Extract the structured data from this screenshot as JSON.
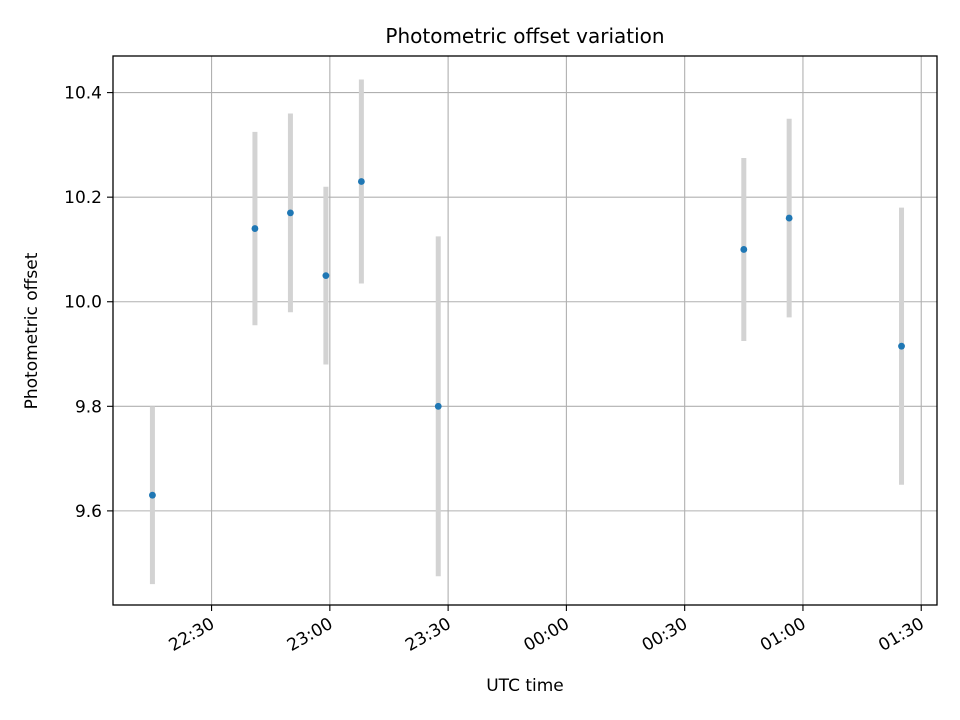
{
  "chart_data": {
    "type": "scatter",
    "title": "Photometric offset variation",
    "xlabel": "UTC time",
    "ylabel": "Photometric offset",
    "x_tick_labels": [
      "22:30",
      "23:00",
      "23:30",
      "00:00",
      "00:30",
      "01:00",
      "01:30"
    ],
    "x_ticks_minutes": [
      1350,
      1380,
      1410,
      1440,
      1470,
      1500,
      1530
    ],
    "y_ticks": [
      9.6,
      9.8,
      10.0,
      10.2,
      10.4
    ],
    "y_tick_labels": [
      "9.6",
      "9.8",
      "10.0",
      "10.2",
      "10.4"
    ],
    "xlim_minutes": [
      1325,
      1534
    ],
    "ylim": [
      9.42,
      10.47
    ],
    "grid": true,
    "marker_color": "#1f77b4",
    "errorbar_color": "#d3d3d3",
    "series": [
      {
        "points": [
          {
            "time": "22:15",
            "minutes": 1335,
            "y": 9.63,
            "err": 0.17
          },
          {
            "time": "22:41",
            "minutes": 1361,
            "y": 10.14,
            "err": 0.185
          },
          {
            "time": "22:50",
            "minutes": 1370,
            "y": 10.17,
            "err": 0.19
          },
          {
            "time": "22:59",
            "minutes": 1379,
            "y": 10.05,
            "err": 0.17
          },
          {
            "time": "23:08",
            "minutes": 1388,
            "y": 10.23,
            "err": 0.195
          },
          {
            "time": "23:28",
            "minutes": 1407.5,
            "y": 9.8,
            "err": 0.325
          },
          {
            "time": "00:46",
            "minutes": 1485,
            "y": 10.1,
            "err": 0.175
          },
          {
            "time": "00:57",
            "minutes": 1496.5,
            "y": 10.16,
            "err": 0.19
          },
          {
            "time": "01:25",
            "minutes": 1525,
            "y": 9.915,
            "err": 0.265
          }
        ]
      }
    ]
  }
}
